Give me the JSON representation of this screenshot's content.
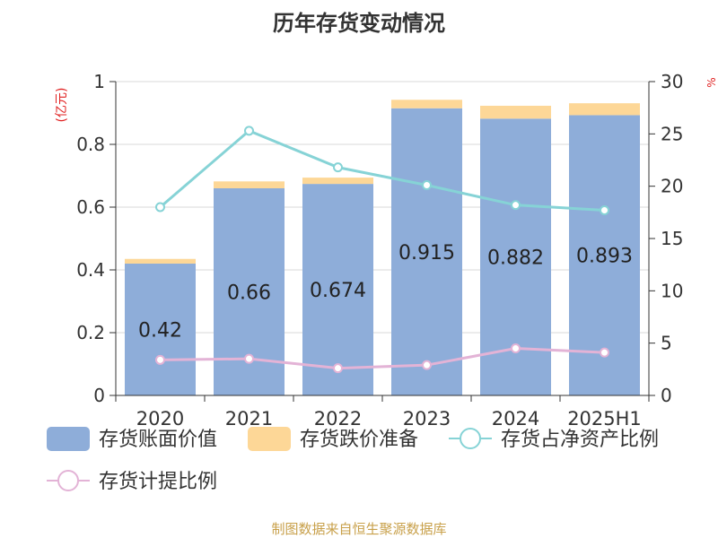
{
  "chart_data": {
    "type": "bar",
    "title": "历年存货变动情况",
    "categories": [
      "2020",
      "2021",
      "2022",
      "2023",
      "2024",
      "2025H1"
    ],
    "y_left": {
      "label": "(亿元)",
      "ticks": [
        "0",
        "0.2",
        "0.4",
        "0.6",
        "0.8",
        "1"
      ],
      "range": [
        0,
        1
      ]
    },
    "y_right": {
      "label": "%",
      "ticks": [
        "0",
        "5",
        "10",
        "15",
        "20",
        "25",
        "30"
      ],
      "range": [
        0,
        30
      ]
    },
    "series": [
      {
        "name": "存货账面价值",
        "kind": "bar-stack",
        "axis": "left",
        "color": "#8eadd9",
        "values": [
          0.42,
          0.66,
          0.674,
          0.915,
          0.882,
          0.893
        ],
        "labels": [
          "0.42",
          "0.66",
          "0.674",
          "0.915",
          "0.882",
          "0.893"
        ]
      },
      {
        "name": "存货跌价准备",
        "kind": "bar-stack",
        "axis": "left",
        "color": "#fdd797",
        "values": [
          0.015,
          0.022,
          0.02,
          0.027,
          0.041,
          0.038
        ]
      },
      {
        "name": "存货占净资产比例",
        "kind": "line",
        "axis": "right",
        "color": "#86d3d6",
        "values": [
          18.0,
          25.3,
          21.8,
          20.1,
          18.2,
          17.7
        ]
      },
      {
        "name": "存货计提比例",
        "kind": "line",
        "axis": "right",
        "color": "#e3b3d6",
        "values": [
          3.4,
          3.5,
          2.6,
          2.9,
          4.5,
          4.1
        ]
      }
    ],
    "legend_position": "bottom",
    "grid": true
  },
  "footer": {
    "source": "制图数据来自恒生聚源数据库"
  }
}
